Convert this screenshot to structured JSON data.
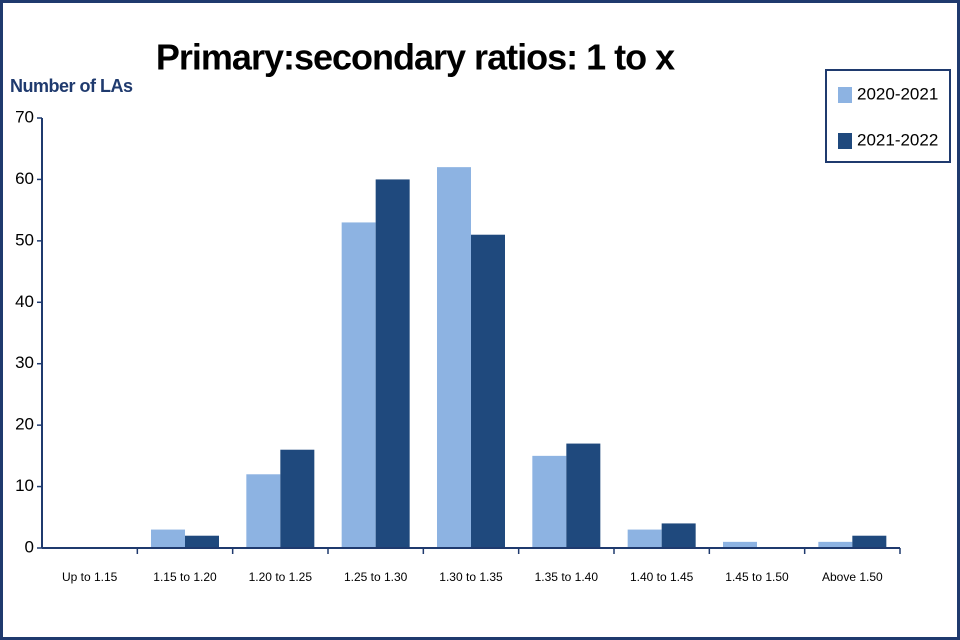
{
  "chart_data": {
    "type": "bar",
    "title": "Primary:secondary ratios: 1 to x",
    "y_label": "Number of LAs",
    "categories": [
      "Up to 1.15",
      "1.15 to 1.20",
      "1.20 to 1.25",
      "1.25 to 1.30",
      "1.30 to 1.35",
      "1.35 to 1.40",
      "1.40 to 1.45",
      "1.45 to 1.50",
      "Above 1.50"
    ],
    "series": [
      {
        "name": "2020-2021",
        "color": "#8db3e2",
        "values": [
          0,
          3,
          12,
          53,
          62,
          15,
          3,
          1,
          1
        ]
      },
      {
        "name": "2021-2022",
        "color": "#1f497d",
        "values": [
          0,
          2,
          16,
          60,
          51,
          17,
          4,
          0,
          2
        ]
      }
    ],
    "ylim": [
      0,
      70
    ],
    "yticks": [
      0,
      10,
      20,
      30,
      40,
      50,
      60,
      70
    ],
    "grid": false,
    "legend": "top-right"
  }
}
